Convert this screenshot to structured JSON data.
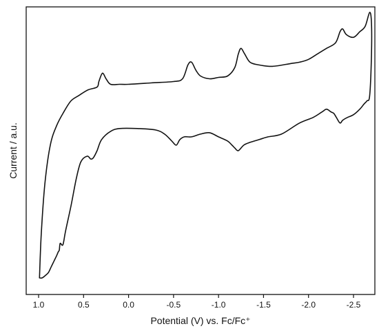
{
  "chart_data": {
    "type": "line",
    "title": "",
    "xlabel": "Potential (V) vs. Fc/Fc⁺",
    "ylabel": "Current / a.u.",
    "x_reversed": true,
    "xlim": [
      1.05,
      -2.72
    ],
    "ylim": [
      0,
      100
    ],
    "x_ticks": [
      {
        "value": 1.0,
        "label": "1.0"
      },
      {
        "value": 0.5,
        "label": "0.5"
      },
      {
        "value": 0.0,
        "label": "0.0"
      },
      {
        "value": -0.5,
        "label": "-0.5"
      },
      {
        "value": -1.0,
        "label": "-1.0"
      },
      {
        "value": -1.5,
        "label": "-1.5"
      },
      {
        "value": -2.0,
        "label": "-2.0"
      },
      {
        "value": -2.5,
        "label": "-2.5"
      }
    ],
    "y_ticks_shown": false,
    "grid": false,
    "legend": "none",
    "line_color": "#111111",
    "series": [
      {
        "name": "",
        "x": [
          0.99,
          0.97,
          0.93,
          0.87,
          0.8,
          0.72,
          0.64,
          0.55,
          0.45,
          0.35,
          0.33,
          0.29,
          0.25,
          0.2,
          0.1,
          0.0,
          -0.25,
          -0.5,
          -0.6,
          -0.66,
          -0.7,
          -0.75,
          -0.8,
          -0.9,
          -1.0,
          -1.1,
          -1.18,
          -1.22,
          -1.25,
          -1.29,
          -1.35,
          -1.45,
          -1.6,
          -1.8,
          -1.9,
          -2.0,
          -2.1,
          -2.2,
          -2.3,
          -2.35,
          -2.38,
          -2.42,
          -2.5,
          -2.57,
          -2.63,
          -2.68,
          -2.7,
          -2.7,
          -2.68,
          -2.65,
          -2.62,
          -2.57,
          -2.5,
          -2.43,
          -2.38,
          -2.35,
          -2.31,
          -2.28,
          -2.25,
          -2.2,
          -2.15,
          -2.05,
          -1.9,
          -1.7,
          -1.55,
          -1.45,
          -1.35,
          -1.28,
          -1.22,
          -1.18,
          -1.15,
          -1.1,
          -1.0,
          -0.9,
          -0.8,
          -0.7,
          -0.62,
          -0.57,
          -0.53,
          -0.48,
          -0.4,
          -0.3,
          -0.1,
          0.1,
          0.2,
          0.3,
          0.35,
          0.39,
          0.42,
          0.46,
          0.53,
          0.58,
          0.64,
          0.7,
          0.73,
          0.76,
          0.77,
          0.78,
          0.8,
          0.83,
          0.86,
          0.89,
          0.92,
          0.96,
          0.99
        ],
        "y": [
          4,
          20,
          38,
          52,
          59,
          64,
          68,
          70,
          72,
          73,
          75,
          78,
          76,
          74,
          74,
          74,
          74.5,
          75,
          76,
          81,
          82,
          79,
          77,
          76,
          76.5,
          77,
          80,
          85,
          87,
          85,
          82,
          81,
          80.5,
          81.5,
          82,
          83,
          85,
          87,
          89,
          93,
          94,
          92,
          91,
          93,
          95,
          100,
          96,
          85,
          70,
          68,
          67,
          65,
          63,
          62,
          61,
          60,
          62,
          63.5,
          64,
          65,
          64,
          62,
          60,
          56,
          55,
          54,
          53,
          52,
          50,
          51,
          52,
          53.5,
          55,
          56.5,
          56,
          55,
          55,
          54,
          52,
          53.5,
          56,
          57.5,
          58,
          58,
          57,
          54,
          50,
          47.5,
          47,
          48,
          46,
          40,
          30,
          21,
          16,
          16.5,
          14,
          13.5,
          12,
          10,
          8,
          6,
          5,
          4,
          4
        ]
      }
    ]
  }
}
